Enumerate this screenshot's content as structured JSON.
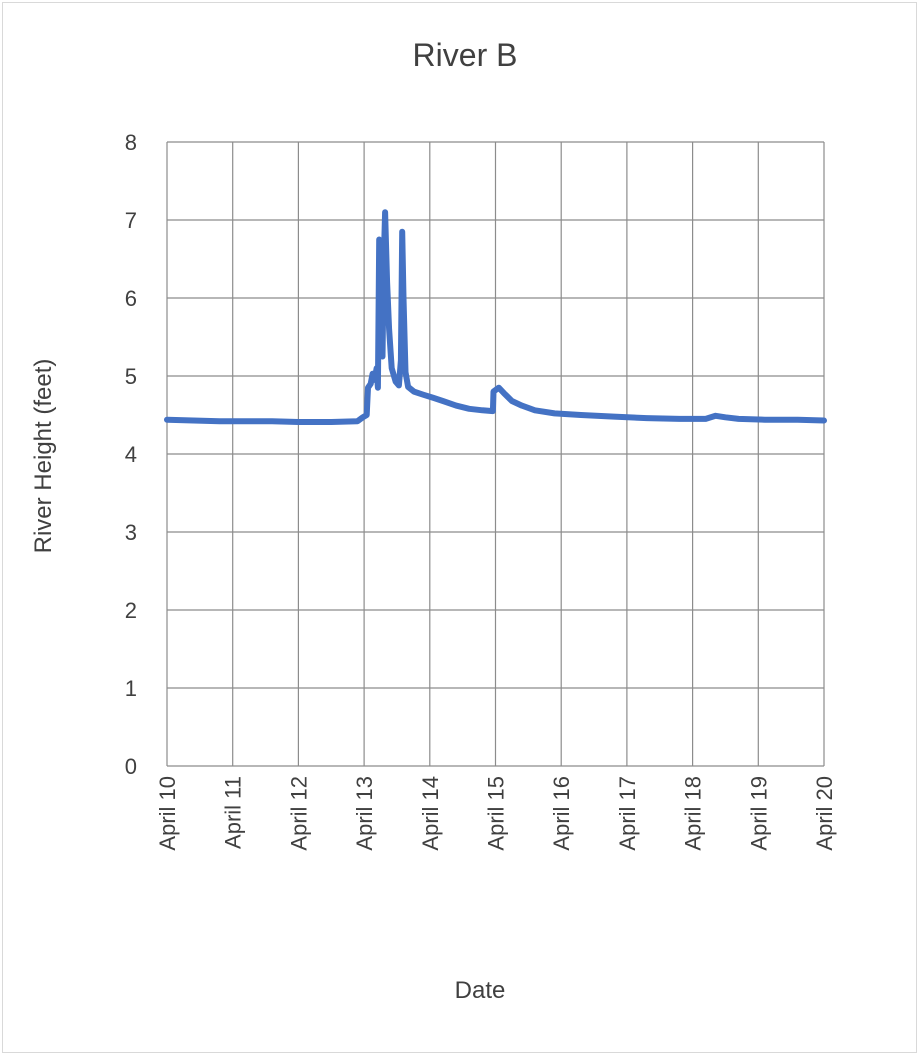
{
  "chart_data": {
    "type": "line",
    "title": "River B",
    "xlabel": "Date",
    "ylabel": "River Height (feet)",
    "x_tick_labels": [
      "April 10",
      "April 11",
      "April 12",
      "April 13",
      "April 14",
      "April 15",
      "April 16",
      "April 17",
      "April 18",
      "April 19",
      "April 20"
    ],
    "x_axis_type": "date",
    "xlim": [
      "April 10",
      "April 20"
    ],
    "ylim": [
      0,
      8
    ],
    "y_ticks": [
      0,
      1,
      2,
      3,
      4,
      5,
      6,
      7,
      8
    ],
    "grid": true,
    "legend": "none",
    "series": [
      {
        "color": "#4472c4",
        "points": [
          [
            "April 10 00:00",
            4.44
          ],
          [
            "April 10 09:36",
            4.43
          ],
          [
            "April 10 19:12",
            4.42
          ],
          [
            "April 11 04:48",
            4.42
          ],
          [
            "April 11 14:24",
            4.42
          ],
          [
            "April 12 00:00",
            4.41
          ],
          [
            "April 12 12:00",
            4.41
          ],
          [
            "April 12 21:36",
            4.42
          ],
          [
            "April 12 23:31",
            4.47
          ],
          [
            "April 13 00:58",
            4.5
          ],
          [
            "April 13 01:26",
            4.85
          ],
          [
            "April 13 02:24",
            4.9
          ],
          [
            "April 13 03:07",
            5.03
          ],
          [
            "April 13 03:50",
            4.95
          ],
          [
            "April 13 04:34",
            5.1
          ],
          [
            "April 13 05:02",
            4.85
          ],
          [
            "April 13 05:31",
            6.75
          ],
          [
            "April 13 06:14",
            5.6
          ],
          [
            "April 13 06:43",
            5.25
          ],
          [
            "April 13 07:12",
            6.5
          ],
          [
            "April 13 07:41",
            7.1
          ],
          [
            "April 13 08:24",
            6.2
          ],
          [
            "April 13 09:07",
            5.6
          ],
          [
            "April 13 10:05",
            5.1
          ],
          [
            "April 13 11:31",
            4.93
          ],
          [
            "April 13 12:43",
            4.88
          ],
          [
            "April 13 13:26",
            5.2
          ],
          [
            "April 13 13:55",
            6.85
          ],
          [
            "April 13 14:24",
            6.0
          ],
          [
            "April 13 15:07",
            5.05
          ],
          [
            "April 13 16:05",
            4.86
          ],
          [
            "April 13 18:14",
            4.8
          ],
          [
            "April 13 21:36",
            4.76
          ],
          [
            "April 14 01:12",
            4.72
          ],
          [
            "April 14 04:48",
            4.68
          ],
          [
            "April 14 09:36",
            4.62
          ],
          [
            "April 14 14:24",
            4.58
          ],
          [
            "April 14 19:12",
            4.56
          ],
          [
            "April 14 23:02",
            4.55
          ],
          [
            "April 14 23:17",
            4.8
          ],
          [
            "April 15 01:12",
            4.85
          ],
          [
            "April 15 03:07",
            4.78
          ],
          [
            "April 15 06:00",
            4.68
          ],
          [
            "April 15 09:36",
            4.62
          ],
          [
            "April 15 14:24",
            4.56
          ],
          [
            "April 15 21:36",
            4.52
          ],
          [
            "April 16 07:12",
            4.5
          ],
          [
            "April 16 19:12",
            4.48
          ],
          [
            "April 17 07:12",
            4.46
          ],
          [
            "April 17 19:12",
            4.45
          ],
          [
            "April 18 04:48",
            4.45
          ],
          [
            "April 18 08:24",
            4.49
          ],
          [
            "April 18 12:00",
            4.47
          ],
          [
            "April 18 16:48",
            4.45
          ],
          [
            "April 19 02:24",
            4.44
          ],
          [
            "April 19 14:24",
            4.44
          ],
          [
            "April 20 00:00",
            4.43
          ]
        ]
      }
    ]
  }
}
